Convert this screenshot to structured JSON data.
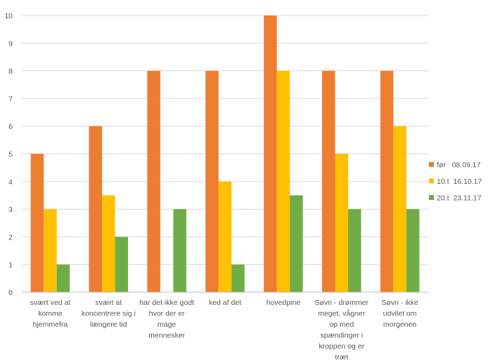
{
  "chart_data": {
    "type": "bar",
    "categories": [
      [
        "svært ved at",
        "komme",
        "hjemmefra"
      ],
      [
        "svært at",
        "koncentrere sig i",
        "længere tid"
      ],
      [
        "har det ikke godt",
        "hvor der er",
        "mage",
        "mennesker"
      ],
      [
        "ked af det"
      ],
      [
        "hovedpine"
      ],
      [
        "Søvn - drømmer",
        "meget, vågner",
        "op med",
        "spændinger i",
        "kroppen og er",
        "træt"
      ],
      [
        "Søvn - ikke",
        "udvilet om",
        "morgenen"
      ]
    ],
    "series": [
      {
        "name": "før   08.09.17",
        "color": "#ED7D31",
        "values": [
          5,
          6,
          8,
          8,
          10,
          8,
          8
        ]
      },
      {
        "name": "10.t  16.10.17",
        "color": "#FFC000",
        "values": [
          3,
          3.5,
          0,
          4,
          8,
          5,
          6
        ]
      },
      {
        "name": "20.t  23.11.17",
        "color": "#70AD47",
        "values": [
          1,
          2,
          3,
          1,
          3.5,
          3,
          3
        ]
      }
    ],
    "yticks": [
      0,
      1,
      2,
      3,
      4,
      5,
      6,
      7,
      8,
      9,
      10
    ],
    "ylim": [
      0,
      10
    ],
    "grid": true,
    "legend_position": "right",
    "gridline_color": "#D9D9D9"
  }
}
